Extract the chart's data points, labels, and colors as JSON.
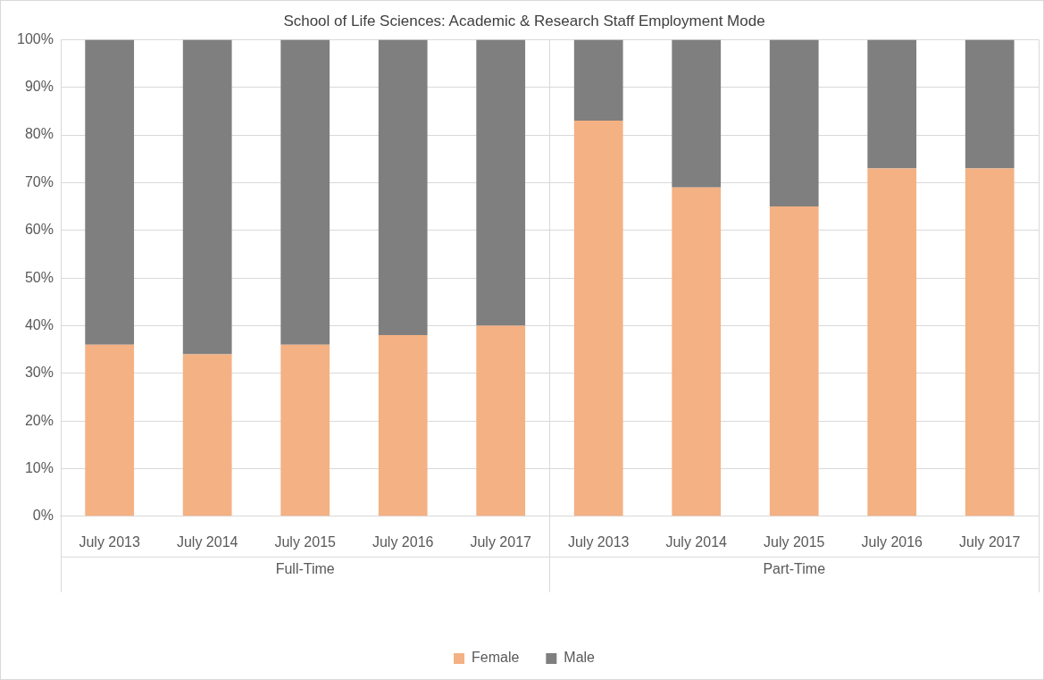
{
  "chart_data": {
    "type": "bar",
    "title": "School of Life Sciences: Academic & Research Staff Employment Mode",
    "categories": [
      "July 2013",
      "July 2014",
      "July 2015",
      "July 2016",
      "July 2017",
      "July 2013",
      "July 2014",
      "July 2015",
      "July 2016",
      "July 2017"
    ],
    "series": [
      {
        "name": "Female",
        "color": "#f4b183",
        "values": [
          36,
          34,
          36,
          38,
          40,
          83,
          69,
          65,
          73,
          73
        ]
      },
      {
        "name": "Male",
        "color": "#7f7f7f",
        "values": [
          64,
          66,
          64,
          62,
          60,
          17,
          31,
          35,
          27,
          27
        ]
      }
    ],
    "stacked": true,
    "ylim": [
      0,
      100
    ],
    "yticks": [
      {
        "value": 0,
        "label": "0%"
      },
      {
        "value": 10,
        "label": "10%"
      },
      {
        "value": 20,
        "label": "20%"
      },
      {
        "value": 30,
        "label": "30%"
      },
      {
        "value": 40,
        "label": "40%"
      },
      {
        "value": 50,
        "label": "50%"
      },
      {
        "value": 60,
        "label": "60%"
      },
      {
        "value": 70,
        "label": "70%"
      },
      {
        "value": 80,
        "label": "80%"
      },
      {
        "value": 90,
        "label": "90%"
      },
      {
        "value": 100,
        "label": "100%"
      }
    ],
    "annotations": [
      "Full-Time",
      "Part-Time"
    ],
    "grid": "y",
    "legend": "bottom"
  }
}
